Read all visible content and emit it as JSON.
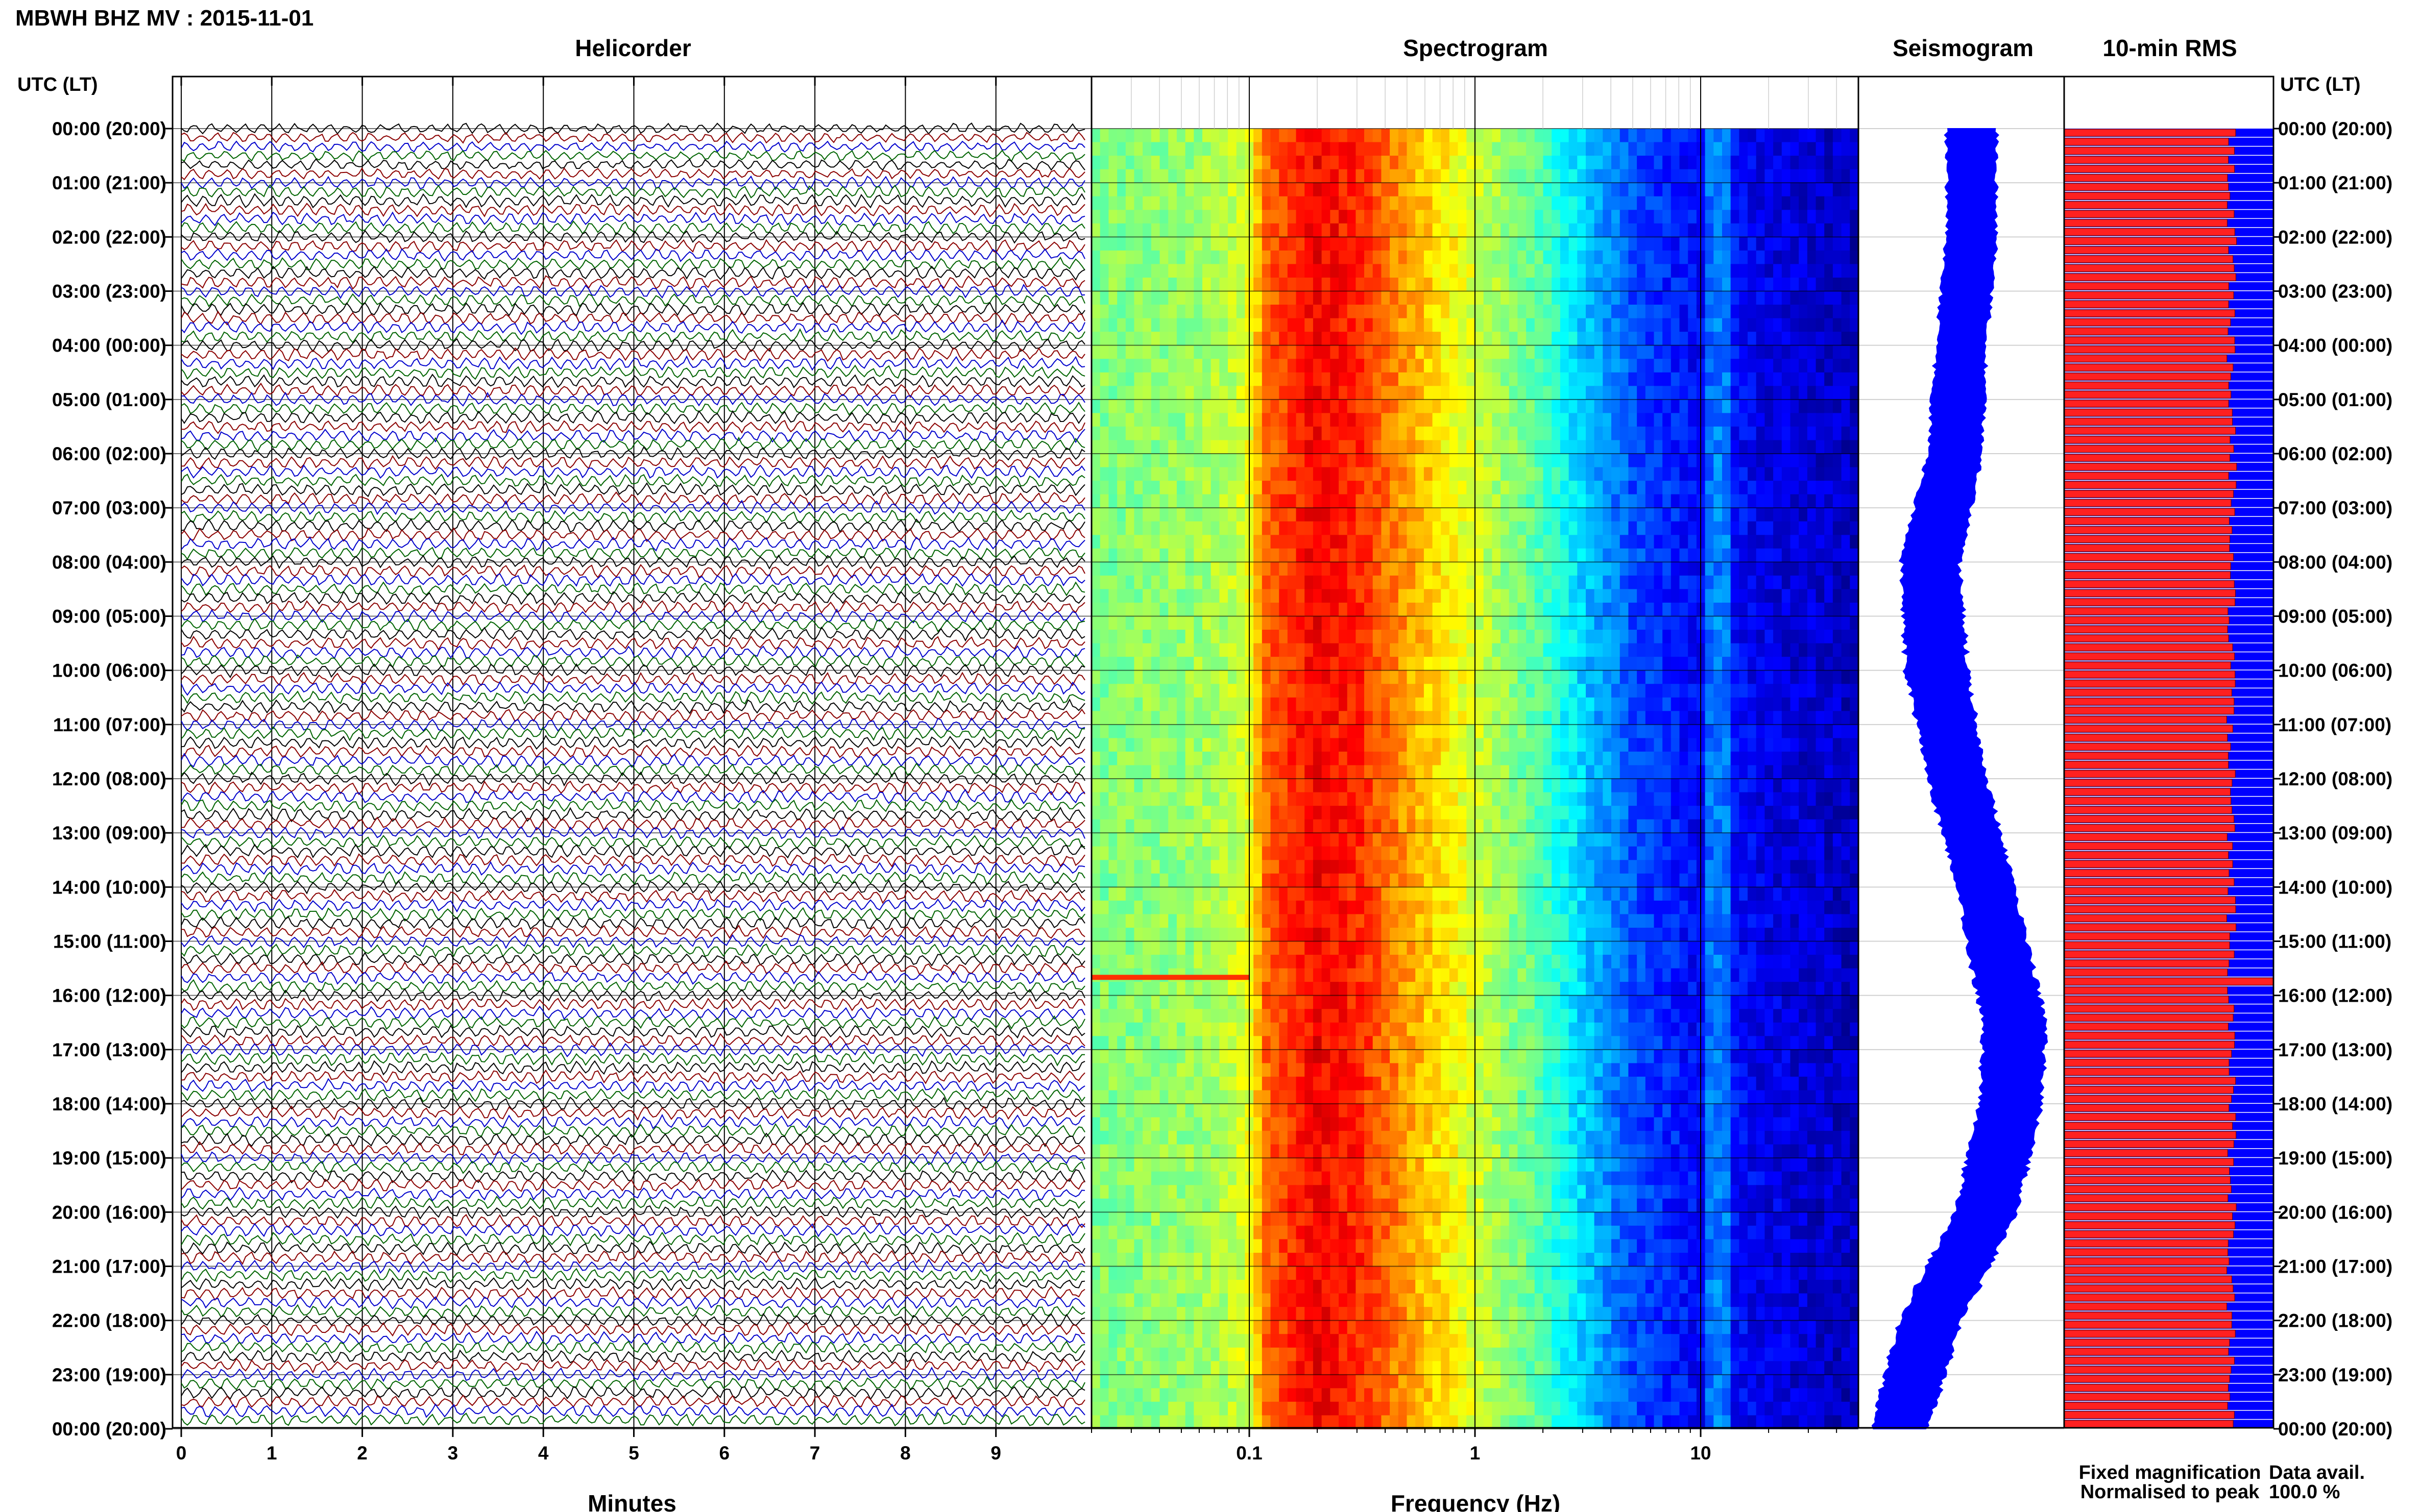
{
  "header": {
    "title": "MBWH BHZ MV : 2015-11-01",
    "time_axis_label": "UTC (LT)",
    "data_avail_label": "Data avail.",
    "data_avail_value": "100.0 %"
  },
  "panels": {
    "helicorder": "Helicorder",
    "spectrogram": "Spectrogram",
    "seismogram": "Seismogram",
    "rms": "10-min RMS"
  },
  "legend": {
    "fixed": "Fixed magnification",
    "normalised": "Normalised to peak"
  },
  "colors": {
    "helicorder_traces": [
      "#000000",
      "#8b0000",
      "#0000cc",
      "#006400"
    ],
    "seismogram": "#0000ff",
    "rms_fixed": "#0000ff",
    "rms_normalised": "#ff2020",
    "legend_fixed": "#0000ff",
    "legend_normalised": "#ff0000"
  },
  "chart_data": [
    {
      "panel": "helicorder",
      "type": "line",
      "xlabel": "Minutes",
      "x_ticks": [
        "0",
        "1",
        "2",
        "3",
        "4",
        "5",
        "6",
        "7",
        "8",
        "9"
      ],
      "xlim": [
        0,
        10
      ],
      "y_ticks_left": [
        "00:00 (20:00)",
        "01:00 (21:00)",
        "02:00 (22:00)",
        "03:00 (23:00)",
        "04:00 (00:00)",
        "05:00 (01:00)",
        "06:00 (02:00)",
        "07:00 (03:00)",
        "08:00 (04:00)",
        "09:00 (05:00)",
        "10:00 (06:00)",
        "11:00 (07:00)",
        "12:00 (08:00)",
        "13:00 (09:00)",
        "14:00 (10:00)",
        "15:00 (11:00)",
        "16:00 (12:00)",
        "17:00 (13:00)",
        "18:00 (14:00)",
        "19:00 (15:00)",
        "20:00 (16:00)",
        "21:00 (17:00)",
        "22:00 (18:00)",
        "23:00 (19:00)",
        "00:00 (20:00)"
      ],
      "lines_per_hour": 6,
      "trace_minutes": 10
    },
    {
      "panel": "spectrogram",
      "type": "heatmap",
      "xlabel": "Frequency (Hz)",
      "x_scale": "log",
      "xlim": [
        0.02,
        50
      ],
      "x_ticks": [
        "0.1",
        "1",
        "10"
      ],
      "colormap": "jet",
      "energy_profile": {
        "freq_hz": [
          0.02,
          0.05,
          0.08,
          0.1,
          0.12,
          0.2,
          0.3,
          0.5,
          1,
          2,
          3,
          5,
          8,
          10,
          12,
          20,
          50
        ],
        "level": [
          0.5,
          0.52,
          0.55,
          0.6,
          0.78,
          0.88,
          0.84,
          0.72,
          0.58,
          0.45,
          0.33,
          0.2,
          0.15,
          0.12,
          0.15,
          0.1,
          0.06
        ]
      },
      "annotations": [
        "narrow band near 12 Hz",
        "transient at ~15:40 UTC, 0.02–0.1 Hz"
      ]
    },
    {
      "panel": "seismogram",
      "type": "area",
      "x": [
        "00:00",
        "02:00",
        "04:00",
        "06:00",
        "08:00",
        "10:00",
        "12:00",
        "14:00",
        "15:30",
        "16:30",
        "18:00",
        "20:00",
        "22:00",
        "24:00"
      ],
      "center": [
        0.55,
        0.55,
        0.5,
        0.47,
        0.35,
        0.38,
        0.48,
        0.62,
        0.7,
        0.76,
        0.74,
        0.62,
        0.35,
        0.2
      ],
      "halfwidth": [
        0.12,
        0.12,
        0.12,
        0.13,
        0.14,
        0.15,
        0.14,
        0.14,
        0.15,
        0.15,
        0.15,
        0.15,
        0.15,
        0.14
      ]
    },
    {
      "panel": "rms",
      "type": "bar",
      "orientation": "horizontal",
      "bin_minutes": 10,
      "xlim": [
        0,
        1
      ],
      "series": [
        {
          "name": "Fixed magnification",
          "values_from": "full bar, blue"
        },
        {
          "name": "Normalised to peak",
          "typical": 0.8,
          "peak": 1.0,
          "peak_time": "15:40"
        }
      ]
    }
  ]
}
